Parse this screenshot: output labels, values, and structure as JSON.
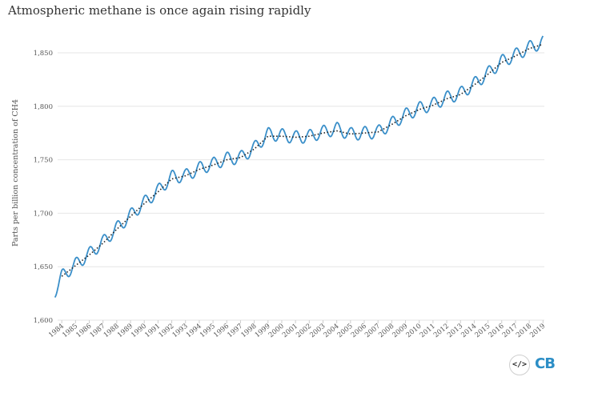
{
  "chart_data": {
    "type": "line",
    "title": "Atmospheric methane is once again rising rapidly",
    "ylabel": "Parts per billion concentration of CH4",
    "xlabel": "",
    "ylim": [
      1600,
      1875
    ],
    "yticks": [
      1600,
      1650,
      1700,
      1750,
      1800,
      1850
    ],
    "ytick_labels": [
      "1,600",
      "1,650",
      "1,700",
      "1,750",
      "1,800",
      "1,850"
    ],
    "xlim": [
      1983.5,
      2019.3
    ],
    "xticks": [
      "1984",
      "1985",
      "1986",
      "1987",
      "1988",
      "1989",
      "1990",
      "1991",
      "1992",
      "1993",
      "1994",
      "1995",
      "1996",
      "1997",
      "1998",
      "1999",
      "2000",
      "2001",
      "2002",
      "2003",
      "2004",
      "2005",
      "2006",
      "2007",
      "2008",
      "2009",
      "2010",
      "2011",
      "2012",
      "2013",
      "2014",
      "2015",
      "2016",
      "2017",
      "2018",
      "2019"
    ],
    "grid": true,
    "series": [
      {
        "style": "solid",
        "color": "#3a8fc9",
        "seasonal_amplitude": 6,
        "x": [
          1983.5,
          1984,
          1985,
          1986,
          1987,
          1988,
          1989,
          1990,
          1991,
          1992,
          1993,
          1994,
          1995,
          1996,
          1997,
          1998,
          1999,
          2000,
          2001,
          2002,
          2003,
          2004,
          2005,
          2006,
          2007,
          2008,
          2009,
          2010,
          2011,
          2012,
          2013,
          2014,
          2015,
          2016,
          2017,
          2018,
          2019
        ],
        "values": [
          1627,
          1641,
          1652,
          1662,
          1673,
          1686,
          1698,
          1710,
          1721,
          1734,
          1735,
          1742,
          1746,
          1751,
          1752,
          1761,
          1774,
          1773,
          1771,
          1772,
          1776,
          1779,
          1774,
          1775,
          1776,
          1784,
          1792,
          1798,
          1802,
          1808,
          1812,
          1821,
          1831,
          1842,
          1848,
          1855,
          1860
        ]
      },
      {
        "style": "dotted",
        "color": "#222222",
        "x": [
          1984,
          1985,
          1986,
          1987,
          1988,
          1989,
          1990,
          1991,
          1992,
          1993,
          1994,
          1995,
          1996,
          1997,
          1998,
          1999,
          2000,
          2001,
          2002,
          2003,
          2004,
          2005,
          2006,
          2007,
          2008,
          2009,
          2010,
          2011,
          2012,
          2013,
          2014,
          2015,
          2016,
          2017,
          2018,
          2019
        ],
        "values": [
          1641,
          1651,
          1661,
          1672,
          1685,
          1697,
          1709,
          1720,
          1732,
          1735,
          1741,
          1745,
          1750,
          1752,
          1760,
          1772,
          1772,
          1771,
          1772,
          1775,
          1777,
          1774,
          1775,
          1776,
          1783,
          1791,
          1797,
          1801,
          1807,
          1811,
          1820,
          1830,
          1841,
          1847,
          1854,
          1858
        ]
      }
    ]
  }
}
